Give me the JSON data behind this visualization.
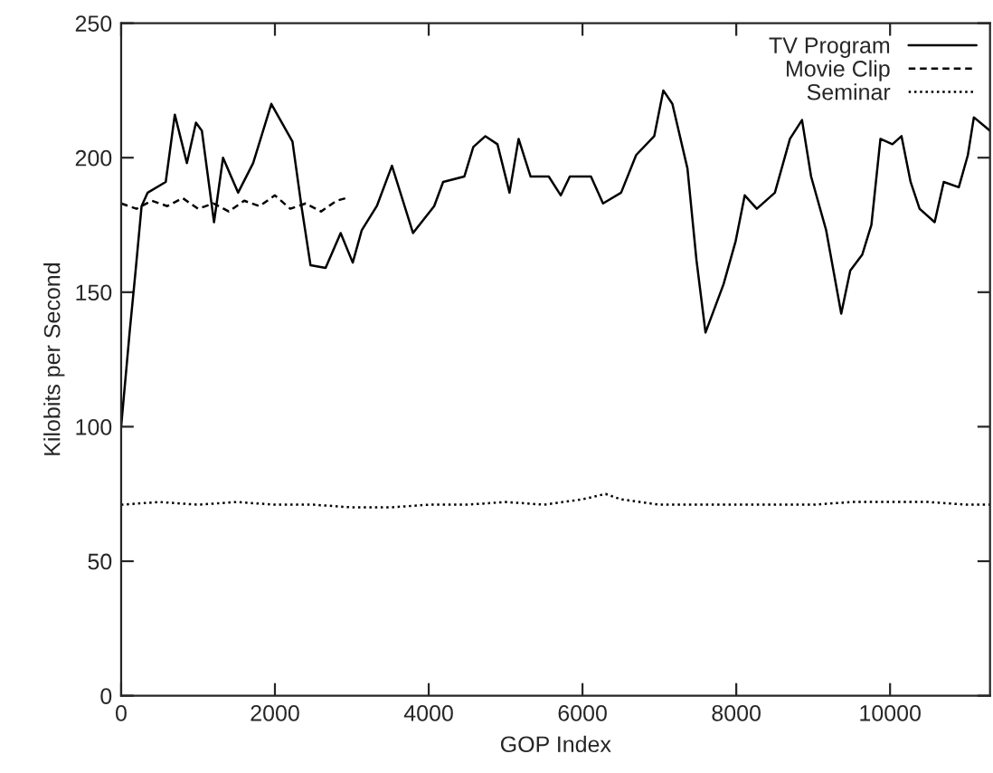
{
  "chart_data": {
    "type": "line",
    "xlabel": "GOP Index",
    "ylabel": "Kilobits per Second",
    "xlim": [
      0,
      11300
    ],
    "xticks": [
      0,
      2000,
      4000,
      6000,
      8000,
      10000
    ],
    "ylim": [
      0,
      250
    ],
    "yticks": [
      0,
      50,
      100,
      150,
      200,
      250
    ],
    "grid": false,
    "legend": "top right",
    "marker": "none",
    "series": [
      {
        "name": "TV Program",
        "color": "#000000",
        "line_style": "solid",
        "x": [
          0,
          110,
          188,
          266,
          345,
          580,
          698,
          855,
          973,
          1050,
          1208,
          1325,
          1521,
          1717,
          1953,
          2228,
          2345,
          2463,
          2659,
          2855,
          3012,
          3129,
          3325,
          3522,
          3796,
          4071,
          4188,
          4463,
          4580,
          4737,
          4894,
          5051,
          5169,
          5325,
          5561,
          5718,
          5835,
          6110,
          6267,
          6502,
          6698,
          6933,
          7051,
          7169,
          7365,
          7482,
          7600,
          7835,
          7992,
          8110,
          8267,
          8502,
          8698,
          8855,
          8973,
          9169,
          9365,
          9482,
          9639,
          9757,
          9875,
          10031,
          10149,
          10267,
          10384,
          10580,
          10698,
          10894,
          11012,
          11090,
          11300
        ],
        "values": [
          100,
          135,
          158,
          182,
          187,
          191,
          216,
          198,
          213,
          210,
          176,
          200,
          187,
          198,
          220,
          206,
          182,
          160,
          159,
          172,
          161,
          173,
          182,
          197,
          172,
          182,
          191,
          193,
          204,
          208,
          205,
          187,
          207,
          193,
          193,
          186,
          193,
          193,
          183,
          187,
          201,
          208,
          225,
          220,
          196,
          162,
          135,
          153,
          169,
          186,
          181,
          187,
          207,
          214,
          193,
          173,
          142,
          158,
          164,
          175,
          207,
          205,
          208,
          191,
          181,
          176,
          191,
          189,
          201,
          215,
          210
        ]
      },
      {
        "name": "Movie Clip",
        "color": "#000000",
        "line_style": "dashed",
        "x": [
          0,
          200,
          400,
          600,
          800,
          1000,
          1200,
          1400,
          1600,
          1800,
          2000,
          2200,
          2400,
          2600,
          2800,
          2930
        ],
        "values": [
          183,
          181,
          184,
          182,
          185,
          181,
          183,
          180,
          184,
          182,
          186,
          181,
          183,
          180,
          184,
          185
        ]
      },
      {
        "name": "Seminar",
        "color": "#000000",
        "line_style": "dotted",
        "x": [
          0,
          500,
          1000,
          1500,
          2000,
          2500,
          3000,
          3500,
          4000,
          4500,
          5000,
          5500,
          6000,
          6300,
          6500,
          7000,
          7500,
          8000,
          8500,
          9000,
          9500,
          10000,
          10500,
          11000,
          11300
        ],
        "values": [
          71,
          72,
          71,
          72,
          71,
          71,
          70,
          70,
          71,
          71,
          72,
          71,
          73,
          75,
          73,
          71,
          71,
          71,
          71,
          71,
          72,
          72,
          72,
          71,
          71
        ]
      }
    ]
  }
}
